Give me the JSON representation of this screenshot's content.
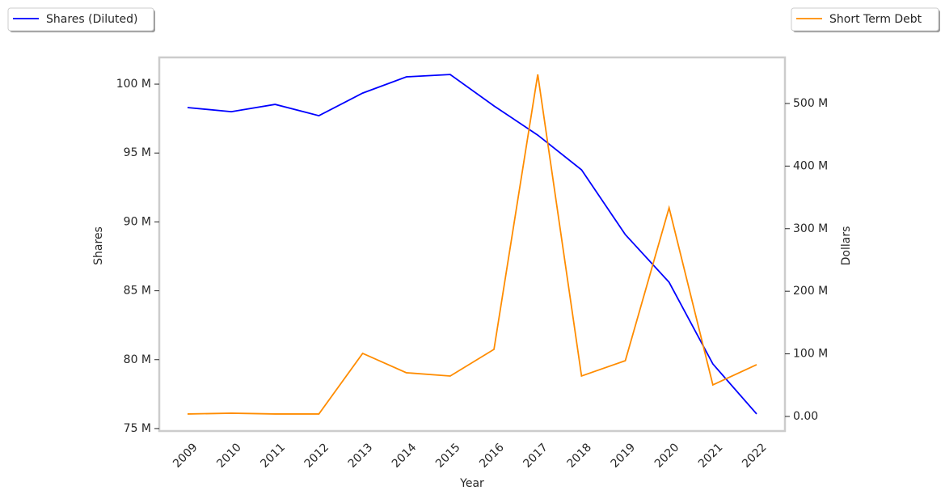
{
  "chart_data": {
    "type": "line",
    "x_label": "Year",
    "y_label": "Shares",
    "y2_label": "Dollars",
    "categories": [
      "2009",
      "2010",
      "2011",
      "2012",
      "2013",
      "2014",
      "2015",
      "2016",
      "2017",
      "2018",
      "2019",
      "2020",
      "2021",
      "2022"
    ],
    "series": [
      {
        "name": "Shares (Diluted)",
        "color": "#0000ff",
        "axis": "y",
        "values": [
          98300000,
          98000000,
          98530000,
          97710000,
          99350000,
          100530000,
          100700000,
          98420000,
          96300000,
          93780000,
          89080000,
          85620000,
          79690000,
          76060000
        ]
      },
      {
        "name": "Short Term Debt",
        "color": "#ff8c00",
        "axis": "y2",
        "values": [
          3900000,
          5200000,
          3900000,
          3900000,
          100800000,
          69800000,
          64600000,
          107200000,
          546500000,
          64600000,
          89100000,
          333300000,
          50400000,
          82700000
        ]
      }
    ],
    "ylim": [
      74820000,
      101940000
    ],
    "yticks": [
      {
        "value": 75000000,
        "label": "75 M"
      },
      {
        "value": 80000000,
        "label": "80 M"
      },
      {
        "value": 85000000,
        "label": "85 M"
      },
      {
        "value": 90000000,
        "label": "90 M"
      },
      {
        "value": 95000000,
        "label": "95 M"
      },
      {
        "value": 100000000,
        "label": "100 M"
      }
    ],
    "y2lim": [
      -23300000,
      573600000
    ],
    "y2ticks": [
      {
        "value": 0,
        "label": "0.00"
      },
      {
        "value": 100000000,
        "label": "100 M"
      },
      {
        "value": 200000000,
        "label": "200 M"
      },
      {
        "value": 300000000,
        "label": "300 M"
      },
      {
        "value": 400000000,
        "label": "400 M"
      },
      {
        "value": 500000000,
        "label": "500 M"
      }
    ],
    "grid": false
  }
}
